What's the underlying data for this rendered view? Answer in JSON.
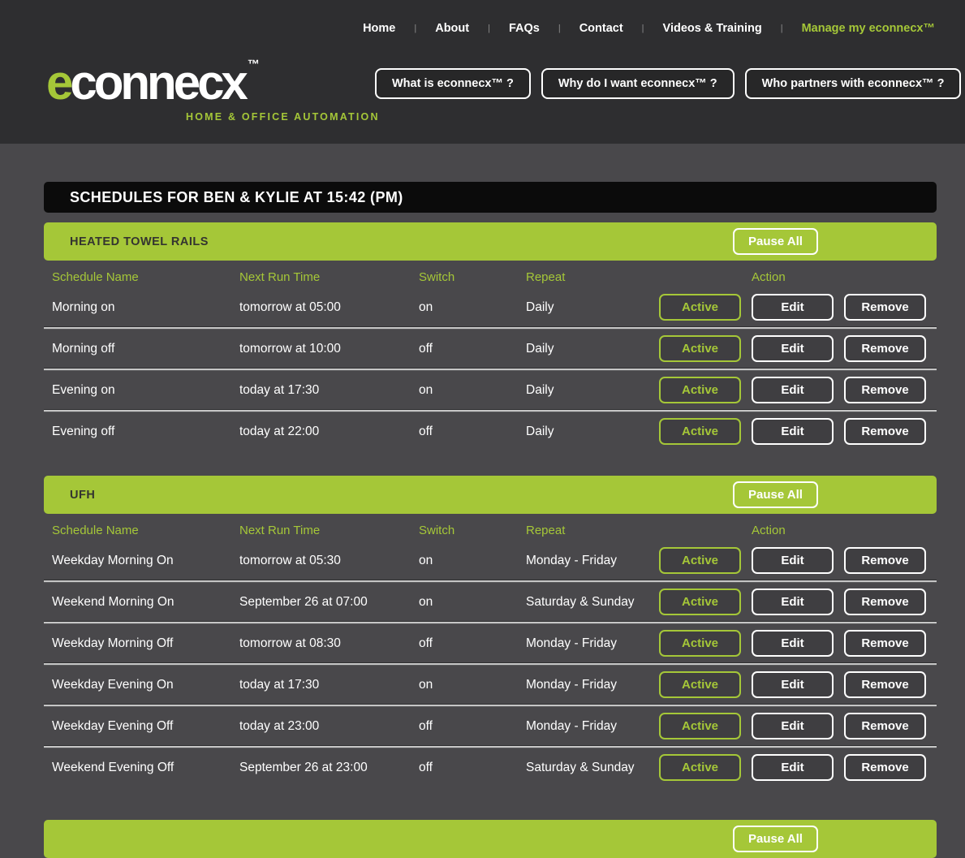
{
  "colors": {
    "accent_green": "#a5c738",
    "header_bg": "#2e2e30",
    "page_bg": "#49484b",
    "title_bar_bg": "#0b0b0b"
  },
  "brand": {
    "logo_e": "e",
    "logo_rest": "connecx",
    "trademark": "™",
    "tagline": "HOME & OFFICE AUTOMATION"
  },
  "nav": {
    "separator": "|",
    "items": [
      "Home",
      "About",
      "FAQs",
      "Contact",
      "Videos & Training"
    ],
    "manage_link": "Manage my econnecx™"
  },
  "header_buttons": [
    "What is econnecx™ ?",
    "Why do I want econnecx™ ?",
    "Who partners with econnecx™ ?"
  ],
  "main": {
    "title": "SCHEDULES FOR BEN & KYLIE AT 15:42 (PM)",
    "pause_label": "Pause All",
    "columns": [
      "Schedule Name",
      "Next Run Time",
      "Switch",
      "Repeat",
      "Action"
    ],
    "actions": {
      "active": "Active",
      "edit": "Edit",
      "remove": "Remove"
    },
    "sections": [
      {
        "name": "HEATED TOWEL RAILS",
        "rows": [
          {
            "name": "Morning on",
            "next_run": "tomorrow at 05:00",
            "switch": "on",
            "repeat": "Daily"
          },
          {
            "name": "Morning off",
            "next_run": "tomorrow at 10:00",
            "switch": "off",
            "repeat": "Daily"
          },
          {
            "name": "Evening on",
            "next_run": "today at 17:30",
            "switch": "on",
            "repeat": "Daily"
          },
          {
            "name": "Evening off",
            "next_run": "today at 22:00",
            "switch": "off",
            "repeat": "Daily"
          }
        ]
      },
      {
        "name": "UFH",
        "rows": [
          {
            "name": "Weekday Morning On",
            "next_run": "tomorrow at 05:30",
            "switch": "on",
            "repeat": "Monday - Friday"
          },
          {
            "name": "Weekend Morning On",
            "next_run": "September 26 at 07:00",
            "switch": "on",
            "repeat": "Saturday & Sunday"
          },
          {
            "name": "Weekday Morning Off",
            "next_run": "tomorrow at 08:30",
            "switch": "off",
            "repeat": "Monday - Friday"
          },
          {
            "name": "Weekday Evening On",
            "next_run": "today at 17:30",
            "switch": "on",
            "repeat": "Monday - Friday"
          },
          {
            "name": "Weekday Evening Off",
            "next_run": "today at 23:00",
            "switch": "off",
            "repeat": "Monday - Friday"
          },
          {
            "name": "Weekend Evening Off",
            "next_run": "September 26 at 23:00",
            "switch": "off",
            "repeat": "Saturday & Sunday"
          }
        ]
      },
      {
        "name": "",
        "rows": []
      }
    ]
  }
}
